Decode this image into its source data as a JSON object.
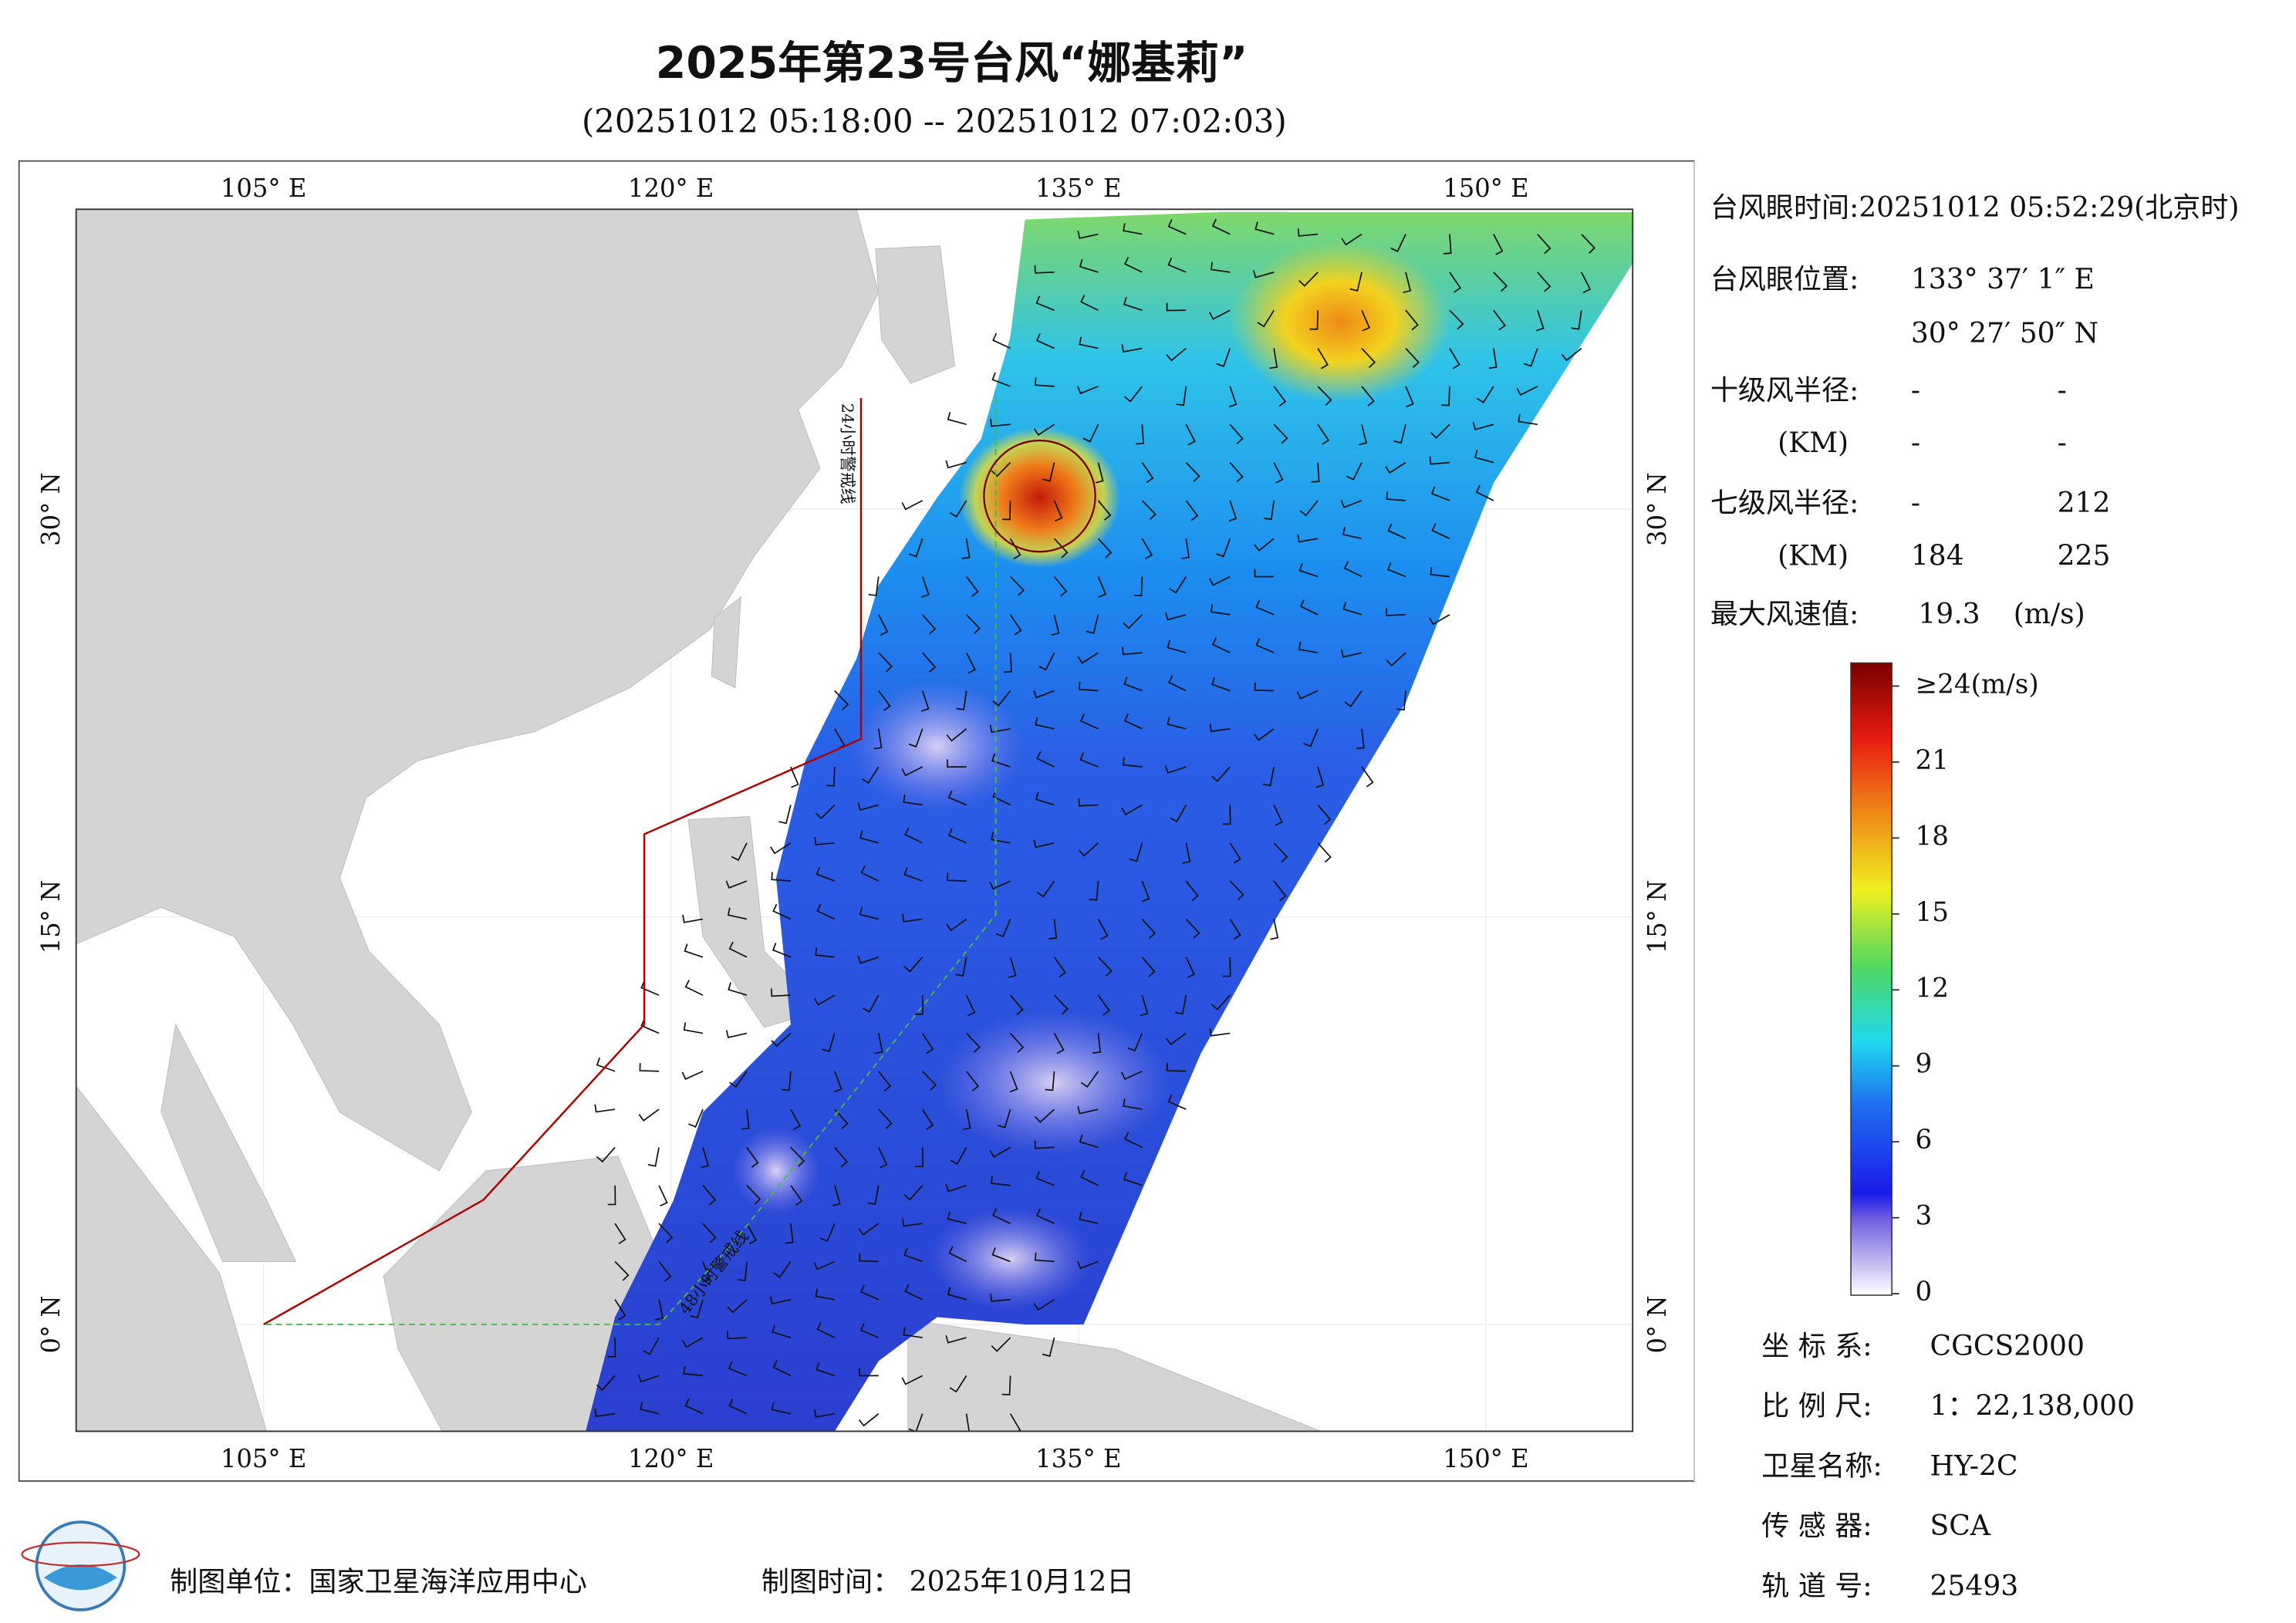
{
  "title": "2025年第23号台风“娜基莉”",
  "subtitle": "(20251012 05:18:00 -- 20251012 07:02:03)",
  "map": {
    "lon_ticks": [
      {
        "value": 105,
        "label": "105° E"
      },
      {
        "value": 120,
        "label": "120° E"
      },
      {
        "value": 135,
        "label": "135° E"
      },
      {
        "value": 150,
        "label": "150° E"
      }
    ],
    "lat_ticks": [
      {
        "value": 0,
        "label": "0° N"
      },
      {
        "value": 15,
        "label": "15° N"
      },
      {
        "value": 30,
        "label": "30° N"
      }
    ],
    "warning_lines": [
      "24小时警戒线",
      "48小时警戒线"
    ]
  },
  "info": {
    "eye_time": "台风眼时间:20251012 05:52:29(北京时)",
    "eye_position_label": "台风眼位置:",
    "eye_lon": "133° 37′ 1″ E",
    "eye_lat": "30° 27′ 50″ N",
    "radius_rows": [
      {
        "label": "十级风半径:",
        "values": [
          "-",
          "-"
        ]
      },
      {
        "label": "(KM)",
        "values": [
          "-",
          "-"
        ]
      },
      {
        "label": "七级风半径:",
        "values": [
          "-",
          212
        ]
      },
      {
        "label": "(KM)",
        "values": [
          184,
          225
        ]
      }
    ],
    "max_wind_label": "最大风速值:",
    "max_wind": 19.3,
    "max_wind_unit": "(m/s)"
  },
  "colorbar": {
    "ticks": [
      0,
      3,
      6,
      9,
      12,
      15,
      18,
      21,
      {
        "value": 24,
        "label": "≥24(m/s)"
      }
    ]
  },
  "meta": [
    {
      "label": "坐 标 系:",
      "value": "CGCS2000"
    },
    {
      "label": "比 例 尺:",
      "value": "1：22,138,000"
    },
    {
      "label": "卫星名称:",
      "value": "HY-2C"
    },
    {
      "label": "传 感 器:",
      "value": "SCA"
    },
    {
      "label": "轨 道 号:",
      "value": 25493
    }
  ],
  "footer": {
    "unit": "制图单位：国家卫星海洋应用中心",
    "time": "制图时间：  2025年10月12日"
  }
}
